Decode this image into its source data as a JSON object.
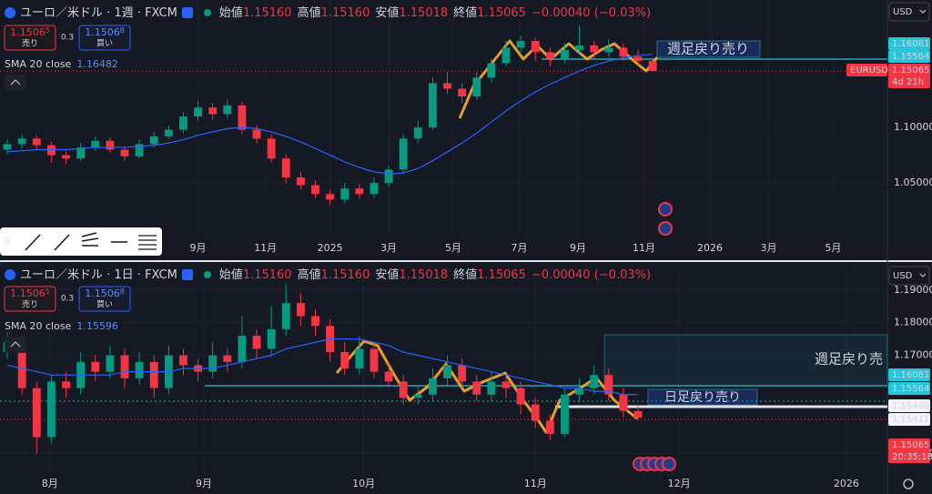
{
  "panels": [
    {
      "header": {
        "symbol": "ユーロ／米ドル · 1週 · FXCM",
        "open_label": "始値",
        "open": "1.15160",
        "high_label": "高値",
        "high": "1.15160",
        "low_label": "安値",
        "low": "1.15018",
        "close_label": "終値",
        "close": "1.15065",
        "change": "−0.00040 (−0.03%)"
      },
      "sell": {
        "price": "1.1506",
        "pip": "5",
        "label": "売り"
      },
      "spread": "0.3",
      "buy": {
        "price": "1.1506",
        "pip": "8",
        "label": "買い"
      },
      "indicator": {
        "name": "SMA 20 close",
        "value": "1.16482"
      },
      "currency": "USD",
      "annotations": [
        "週足戻り売り"
      ],
      "price_labels": [
        "1.16081",
        "1.15564",
        "EURUSD",
        "1.15065",
        "4d 21h"
      ],
      "chart_data": {
        "type": "candlestick",
        "up_color": "#089981",
        "down_color": "#f23645",
        "sma_color": "#2962ff",
        "xlim": [
          -0.5,
          60
        ],
        "xticks": [
          {
            "value": 13,
            "label": "9月"
          },
          {
            "value": 17.6,
            "label": "11月"
          },
          {
            "value": 22,
            "label": "2025"
          },
          {
            "value": 26,
            "label": "3月"
          },
          {
            "value": 30.4,
            "label": "5月"
          },
          {
            "value": 34.9,
            "label": "7月"
          },
          {
            "value": 38.9,
            "label": "9月"
          },
          {
            "value": 43.4,
            "label": "11月"
          },
          {
            "value": 47.9,
            "label": "2026"
          },
          {
            "value": 51.9,
            "label": "3月"
          },
          {
            "value": 56.3,
            "label": "5月"
          }
        ],
        "ylim": [
          1.0,
          1.215
        ],
        "yticks": [
          {
            "value": 1.1,
            "label": "1.10000"
          },
          {
            "value": 1.05,
            "label": "1.05000"
          }
        ],
        "ohlc": [
          [
            1.08,
            1.089,
            1.076,
            1.085
          ],
          [
            1.085,
            1.094,
            1.081,
            1.09
          ],
          [
            1.09,
            1.093,
            1.08,
            1.084
          ],
          [
            1.084,
            1.087,
            1.068,
            1.075
          ],
          [
            1.075,
            1.079,
            1.067,
            1.072
          ],
          [
            1.072,
            1.086,
            1.07,
            1.082
          ],
          [
            1.082,
            1.092,
            1.079,
            1.088
          ],
          [
            1.088,
            1.091,
            1.077,
            1.08
          ],
          [
            1.08,
            1.083,
            1.07,
            1.074
          ],
          [
            1.074,
            1.089,
            1.072,
            1.085
          ],
          [
            1.085,
            1.096,
            1.082,
            1.092
          ],
          [
            1.092,
            1.102,
            1.089,
            1.098
          ],
          [
            1.098,
            1.114,
            1.095,
            1.11
          ],
          [
            1.11,
            1.124,
            1.106,
            1.118
          ],
          [
            1.118,
            1.122,
            1.107,
            1.112
          ],
          [
            1.112,
            1.125,
            1.108,
            1.12
          ],
          [
            1.12,
            1.123,
            1.094,
            1.098
          ],
          [
            1.098,
            1.102,
            1.086,
            1.09
          ],
          [
            1.09,
            1.094,
            1.068,
            1.072
          ],
          [
            1.072,
            1.076,
            1.05,
            1.055
          ],
          [
            1.055,
            1.06,
            1.044,
            1.048
          ],
          [
            1.048,
            1.052,
            1.036,
            1.04
          ],
          [
            1.04,
            1.044,
            1.03,
            1.035
          ],
          [
            1.035,
            1.05,
            1.032,
            1.045
          ],
          [
            1.045,
            1.049,
            1.036,
            1.04
          ],
          [
            1.04,
            1.055,
            1.037,
            1.05
          ],
          [
            1.05,
            1.066,
            1.046,
            1.062
          ],
          [
            1.062,
            1.094,
            1.058,
            1.09
          ],
          [
            1.09,
            1.106,
            1.086,
            1.1
          ],
          [
            1.1,
            1.145,
            1.098,
            1.14
          ],
          [
            1.14,
            1.15,
            1.13,
            1.135
          ],
          [
            1.135,
            1.14,
            1.122,
            1.128
          ],
          [
            1.128,
            1.15,
            1.125,
            1.145
          ],
          [
            1.145,
            1.162,
            1.14,
            1.158
          ],
          [
            1.158,
            1.178,
            1.155,
            1.172
          ],
          [
            1.172,
            1.183,
            1.166,
            1.178
          ],
          [
            1.178,
            1.181,
            1.16,
            1.168
          ],
          [
            1.168,
            1.172,
            1.155,
            1.162
          ],
          [
            1.162,
            1.176,
            1.158,
            1.17
          ],
          [
            1.17,
            1.192,
            1.166,
            1.174
          ],
          [
            1.174,
            1.178,
            1.162,
            1.168
          ],
          [
            1.168,
            1.18,
            1.164,
            1.172
          ],
          [
            1.172,
            1.176,
            1.16,
            1.164
          ],
          [
            1.164,
            1.17,
            1.156,
            1.16
          ],
          [
            1.16,
            1.163,
            1.15,
            1.151
          ]
        ],
        "sma": [
          1.078,
          1.079,
          1.08,
          1.08,
          1.08,
          1.081,
          1.082,
          1.082,
          1.082,
          1.083,
          1.084,
          1.086,
          1.089,
          1.093,
          1.096,
          1.099,
          1.1,
          1.099,
          1.096,
          1.092,
          1.087,
          1.081,
          1.075,
          1.069,
          1.064,
          1.06,
          1.058,
          1.059,
          1.063,
          1.07,
          1.078,
          1.086,
          1.095,
          1.105,
          1.115,
          1.124,
          1.132,
          1.139,
          1.145,
          1.151,
          1.156,
          1.16,
          1.163,
          1.165,
          1.166
        ]
      }
    },
    {
      "header": {
        "symbol": "ユーロ／米ドル · 1日 · FXCM",
        "open_label": "始値",
        "open": "1.15160",
        "high_label": "高値",
        "high": "1.15160",
        "low_label": "安値",
        "low": "1.15018",
        "close_label": "終値",
        "close": "1.15065",
        "change": "−0.00040 (−0.03%)"
      },
      "sell": {
        "price": "1.1506",
        "pip": "5",
        "label": "売り"
      },
      "spread": "0.3",
      "buy": {
        "price": "1.1506",
        "pip": "8",
        "label": "買い"
      },
      "indicator": {
        "name": "SMA 20 close",
        "value": "1.15596"
      },
      "currency": "USD",
      "annotations": [
        "週足戻り売",
        "日足戻り売り"
      ],
      "price_labels": [
        "1.16081",
        "1.15564",
        "1.15469",
        "1.15411",
        "1.15065",
        "20:35:18"
      ],
      "chart_data": {
        "type": "candlestick",
        "up_color": "#089981",
        "down_color": "#f23645",
        "sma_color": "#2962ff",
        "xlim": [
          -0.5,
          60
        ],
        "xticks": [
          {
            "value": 2.9,
            "label": "8月"
          },
          {
            "value": 13.4,
            "label": "9月"
          },
          {
            "value": 24.3,
            "label": "10月"
          },
          {
            "value": 36,
            "label": "11月"
          },
          {
            "value": 45.8,
            "label": "12月"
          },
          {
            "value": 57.2,
            "label": "2026"
          }
        ],
        "ylim": [
          1.134,
          1.198
        ],
        "yticks": [
          {
            "value": 1.19,
            "label": "1.19000"
          },
          {
            "value": 1.18,
            "label": "1.18000"
          },
          {
            "value": 1.17,
            "label": "1.17000"
          },
          {
            "value": 1.14,
            "label": "1.14000"
          }
        ],
        "ohlc": [
          [
            1.171,
            1.177,
            1.169,
            1.174
          ],
          [
            1.174,
            1.176,
            1.158,
            1.16
          ],
          [
            1.16,
            1.162,
            1.14,
            1.145
          ],
          [
            1.145,
            1.164,
            1.143,
            1.162
          ],
          [
            1.162,
            1.165,
            1.157,
            1.16
          ],
          [
            1.16,
            1.171,
            1.158,
            1.168
          ],
          [
            1.168,
            1.17,
            1.162,
            1.165
          ],
          [
            1.165,
            1.173,
            1.163,
            1.17
          ],
          [
            1.17,
            1.172,
            1.16,
            1.163
          ],
          [
            1.163,
            1.171,
            1.161,
            1.168
          ],
          [
            1.168,
            1.17,
            1.157,
            1.16
          ],
          [
            1.16,
            1.173,
            1.158,
            1.17
          ],
          [
            1.17,
            1.172,
            1.164,
            1.167
          ],
          [
            1.167,
            1.169,
            1.162,
            1.165
          ],
          [
            1.165,
            1.174,
            1.163,
            1.17
          ],
          [
            1.17,
            1.172,
            1.165,
            1.168
          ],
          [
            1.168,
            1.182,
            1.166,
            1.176
          ],
          [
            1.176,
            1.178,
            1.169,
            1.172
          ],
          [
            1.172,
            1.185,
            1.17,
            1.178
          ],
          [
            1.178,
            1.192,
            1.176,
            1.186
          ],
          [
            1.186,
            1.189,
            1.179,
            1.182
          ],
          [
            1.182,
            1.184,
            1.176,
            1.179
          ],
          [
            1.179,
            1.181,
            1.168,
            1.171
          ],
          [
            1.171,
            1.174,
            1.164,
            1.166
          ],
          [
            1.166,
            1.176,
            1.164,
            1.172
          ],
          [
            1.172,
            1.174,
            1.163,
            1.165
          ],
          [
            1.165,
            1.168,
            1.16,
            1.162
          ],
          [
            1.162,
            1.164,
            1.155,
            1.157
          ],
          [
            1.157,
            1.161,
            1.155,
            1.158
          ],
          [
            1.158,
            1.166,
            1.156,
            1.163
          ],
          [
            1.163,
            1.17,
            1.161,
            1.167
          ],
          [
            1.167,
            1.169,
            1.16,
            1.162
          ],
          [
            1.162,
            1.164,
            1.156,
            1.158
          ],
          [
            1.158,
            1.165,
            1.156,
            1.162
          ],
          [
            1.162,
            1.164,
            1.157,
            1.16
          ],
          [
            1.16,
            1.162,
            1.152,
            1.155
          ],
          [
            1.155,
            1.157,
            1.148,
            1.15
          ],
          [
            1.15,
            1.152,
            1.144,
            1.146
          ],
          [
            1.146,
            1.16,
            1.145,
            1.158
          ],
          [
            1.158,
            1.163,
            1.156,
            1.16
          ],
          [
            1.16,
            1.167,
            1.158,
            1.164
          ],
          [
            1.164,
            1.166,
            1.156,
            1.158
          ],
          [
            1.158,
            1.16,
            1.151,
            1.153
          ],
          [
            1.153,
            1.155,
            1.15,
            1.151
          ]
        ],
        "sma": [
          1.167,
          1.166,
          1.165,
          1.164,
          1.164,
          1.164,
          1.164,
          1.164,
          1.165,
          1.165,
          1.165,
          1.165,
          1.166,
          1.166,
          1.166,
          1.167,
          1.168,
          1.169,
          1.17,
          1.172,
          1.173,
          1.174,
          1.175,
          1.175,
          1.175,
          1.174,
          1.173,
          1.171,
          1.17,
          1.169,
          1.168,
          1.167,
          1.166,
          1.165,
          1.164,
          1.163,
          1.162,
          1.161,
          1.16,
          1.16,
          1.159,
          1.159,
          1.158,
          1.158
        ]
      }
    }
  ]
}
